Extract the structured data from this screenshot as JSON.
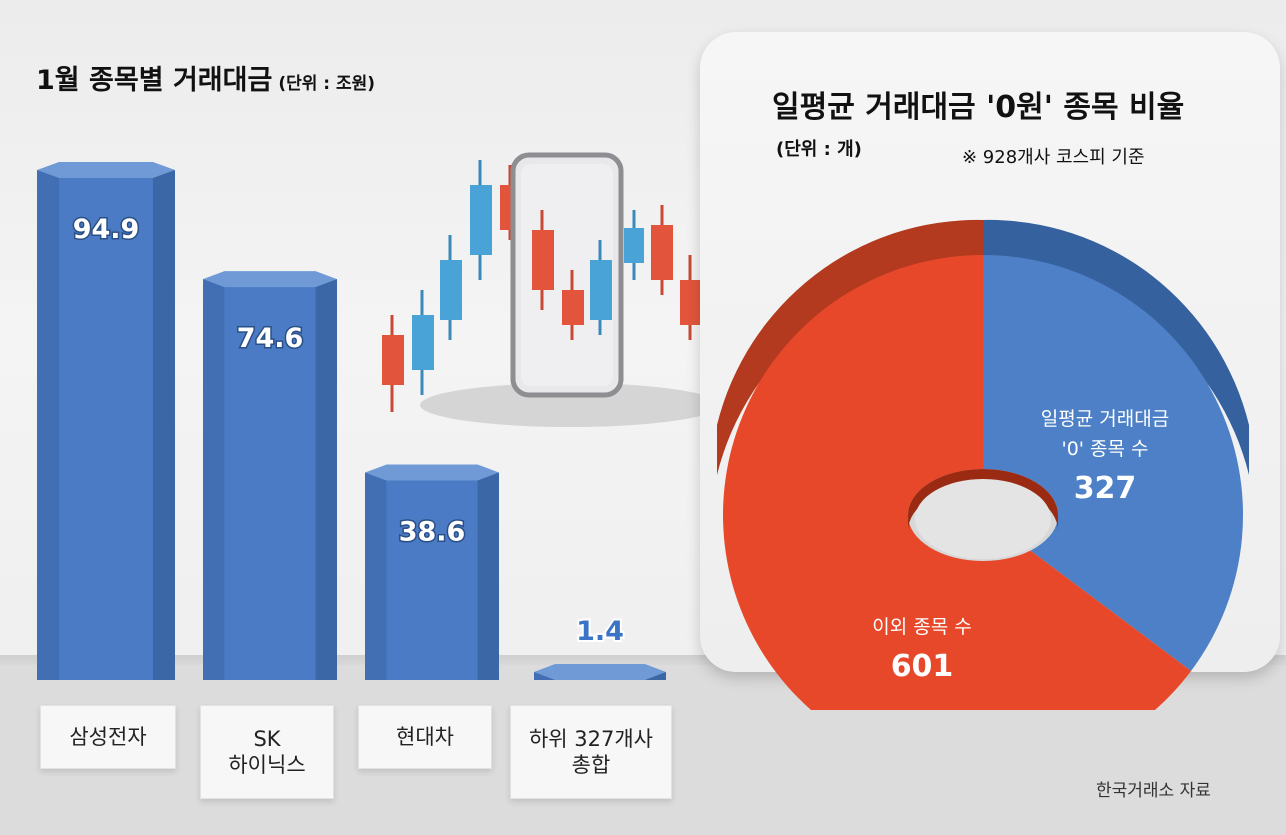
{
  "left_chart": {
    "title": "1월 종목별 거래대금",
    "unit": "(단위 : 조원)"
  },
  "right_chart": {
    "title": "일평균 거래대금 '0원' 종목 비율",
    "unit": "(단위 : 개)",
    "note": "※ 928개사 코스피 기준"
  },
  "source": "한국거래소 자료",
  "colors": {
    "bar": "#4a7bc4",
    "pie_blue": "#4d80c6",
    "pie_red": "#e8482a"
  },
  "chart_data": [
    {
      "type": "bar",
      "title": "1월 종목별 거래대금",
      "ylabel": "(단위 : 조원)",
      "categories": [
        "삼성전자",
        "SK\n하이닉스",
        "현대차",
        "하위 327개사\n총합"
      ],
      "values": [
        94.9,
        74.6,
        38.6,
        1.4
      ],
      "value_labels": [
        "94.9",
        "74.6",
        "38.6",
        "1.4"
      ]
    },
    {
      "type": "pie",
      "title": "일평균 거래대금 '0원' 종목 비율",
      "slices": [
        {
          "label": "일평균 거래대금\n'0' 종목 수",
          "value": 327,
          "value_label": "327"
        },
        {
          "label": "이외 종목 수",
          "value": 601,
          "value_label": "601"
        }
      ]
    }
  ]
}
